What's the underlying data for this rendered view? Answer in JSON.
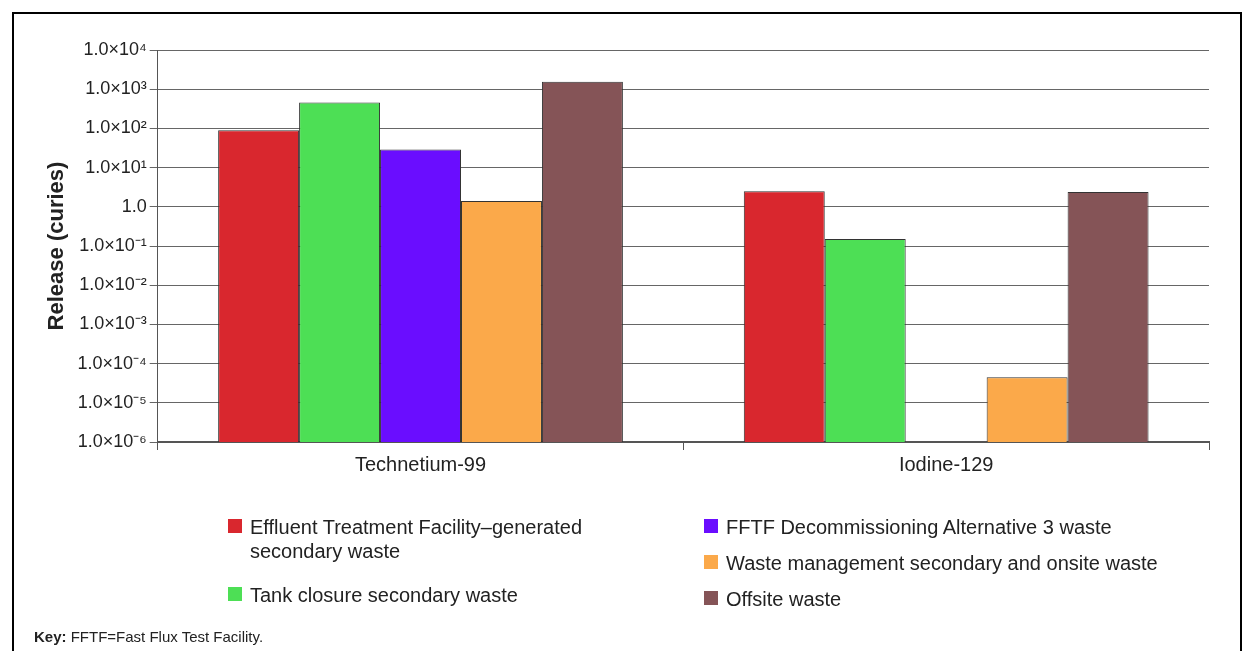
{
  "chart_data": {
    "type": "bar",
    "ylabel": "Release (curies)",
    "categories": [
      "Technetium-99",
      "Iodine-129"
    ],
    "series": [
      {
        "name": "Effluent Treatment Facility–generated secondary waste",
        "color": "#d9272e",
        "values": [
          90,
          2.5
        ]
      },
      {
        "name": "Tank closure secondary waste",
        "color": "#4ddf55",
        "values": [
          460,
          0.15
        ]
      },
      {
        "name": "FFTF Decommissioning Alternative 3 waste",
        "color": "#6a0dff",
        "values": [
          29,
          null
        ]
      },
      {
        "name": "Waste management secondary and onsite waste",
        "color": "#fba94a",
        "values": [
          1.4,
          4.5e-05
        ]
      },
      {
        "name": "Offsite waste",
        "color": "#855457",
        "values": [
          1550,
          2.4
        ]
      }
    ],
    "log": true,
    "ylim": [
      1e-06,
      10000
    ],
    "yticks": [
      {
        "value": 1e-06,
        "label": "1.0×10⁻⁶"
      },
      {
        "value": 1e-05,
        "label": "1.0×10⁻⁵"
      },
      {
        "value": 0.0001,
        "label": "1.0×10⁻⁴"
      },
      {
        "value": 0.001,
        "label": "1.0×10⁻³"
      },
      {
        "value": 0.01,
        "label": "1.0×10⁻²"
      },
      {
        "value": 0.1,
        "label": "1.0×10⁻¹"
      },
      {
        "value": 1,
        "label": "1.0"
      },
      {
        "value": 10,
        "label": "1.0×10¹"
      },
      {
        "value": 100,
        "label": "1.0×10²"
      },
      {
        "value": 1000,
        "label": "1.0×10³"
      },
      {
        "value": 10000,
        "label": "1.0×10⁴"
      }
    ],
    "grid": "y",
    "legend": "bottom",
    "annotations": [
      "Key: FFTF=Fast Flux Test Facility."
    ]
  }
}
